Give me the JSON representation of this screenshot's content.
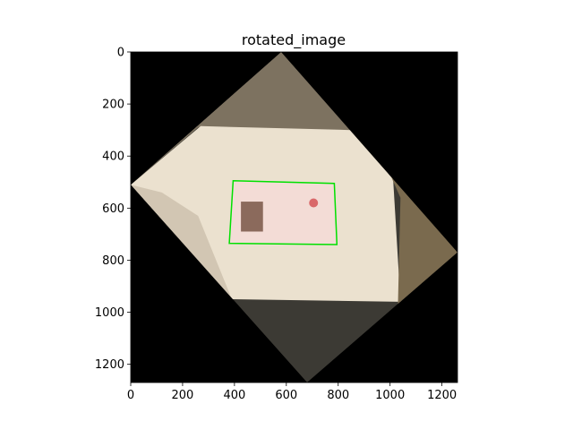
{
  "chart_data": {
    "type": "image",
    "title": "rotated_image",
    "xlabel": "",
    "ylabel": "",
    "xlim": [
      0,
      1260
    ],
    "ylim": [
      1270,
      0
    ],
    "xticks": [
      0,
      200,
      400,
      600,
      800,
      1000,
      1200
    ],
    "yticks": [
      0,
      200,
      400,
      600,
      800,
      1000,
      1200
    ],
    "grid": false,
    "image_content": {
      "rotated_photo_corners": [
        [
          580,
          0
        ],
        [
          1260,
          770
        ],
        [
          680,
          1270
        ],
        [
          0,
          510
        ]
      ],
      "detected_id_card_box": [
        [
          395,
          495
        ],
        [
          785,
          505
        ],
        [
          795,
          740
        ],
        [
          380,
          735
        ]
      ],
      "box_color": "#00e000",
      "background_color": "#000000"
    }
  },
  "colors": {
    "paper": "#ebe1cf",
    "wall": "#7d7260",
    "card": "#f3dcd6",
    "shadow": "#b3a791"
  }
}
